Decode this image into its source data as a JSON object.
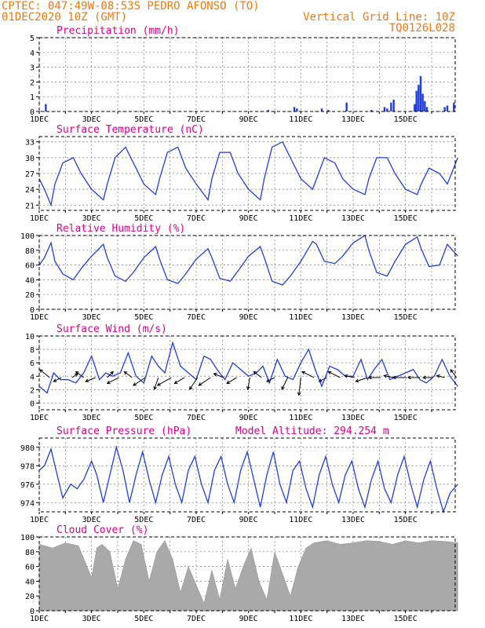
{
  "header": {
    "line1": "CPTEC:   047:49W-08:53S   PEDRO AFONSO (TO)",
    "line2": "01DEC2020 10Z (GMT)",
    "grid_note": "Vertical Grid Line: 10Z",
    "code": "TQ0126L028"
  },
  "colors": {
    "header": "#e87a14",
    "title": "#d8008c",
    "series": "#1f3fdc",
    "cloud": "#a9a9a9",
    "axis": "#000000"
  },
  "x_ticks": [
    "1DEC",
    "3DEC",
    "5DEC",
    "7DEC",
    "9DEC",
    "11DEC",
    "13DEC",
    "15DEC"
  ],
  "x_range_days": [
    0,
    15
  ],
  "chart_data": [
    {
      "type": "bar",
      "title": "Precipitation (mm/h)",
      "ylim": [
        0,
        5
      ],
      "yticks": [
        "0",
        "1",
        "2",
        "3",
        "4",
        "5"
      ],
      "x": [
        0.25,
        8.75,
        9.75,
        9.85,
        10.8,
        11.05,
        11.75,
        12.7,
        13.2,
        13.3,
        13.45,
        13.55,
        14.35,
        14.42,
        14.5,
        14.58,
        14.66,
        14.74,
        14.82,
        15.5,
        15.6,
        15.85
      ],
      "values": [
        0.5,
        0.1,
        0.3,
        0.2,
        0.2,
        0.1,
        0.6,
        0.1,
        0.3,
        0.2,
        0.6,
        0.8,
        0.5,
        1.4,
        1.8,
        2.4,
        1.2,
        0.7,
        0.3,
        0.3,
        0.4,
        0.6
      ]
    },
    {
      "type": "line",
      "title": "Surface Temperature (nC)",
      "ylim": [
        20,
        34
      ],
      "yticks": [
        "21",
        "24",
        "27",
        "30",
        "33"
      ],
      "x": [
        0.0,
        0.2,
        0.45,
        0.6,
        0.9,
        1.3,
        1.6,
        2.0,
        2.45,
        2.6,
        2.9,
        3.3,
        3.6,
        4.0,
        4.45,
        4.6,
        4.9,
        5.3,
        5.6,
        6.0,
        6.45,
        6.6,
        6.9,
        7.3,
        7.6,
        8.0,
        8.45,
        8.6,
        8.9,
        9.3,
        9.6,
        10.0,
        10.45,
        10.6,
        10.9,
        11.3,
        11.6,
        12.0,
        12.45,
        12.6,
        12.9,
        13.3,
        13.6,
        14.0,
        14.45,
        14.6,
        14.9,
        15.3,
        15.6,
        16.0
      ],
      "values": [
        26,
        24,
        21,
        25,
        29,
        30,
        27,
        24,
        22,
        25,
        30,
        32,
        29,
        25,
        23,
        26,
        31,
        32,
        28,
        25,
        22,
        26,
        31,
        31,
        27,
        24,
        22,
        26,
        32,
        33,
        30,
        26,
        24,
        26,
        30,
        29,
        26,
        24,
        23,
        26,
        30,
        30,
        27,
        24,
        23,
        25,
        28,
        27,
        25,
        30
      ]
    },
    {
      "type": "line",
      "title": "Relative Humidity (%)",
      "ylim": [
        0,
        100
      ],
      "yticks": [
        "0",
        "20",
        "40",
        "60",
        "80",
        "100"
      ],
      "x": [
        0.0,
        0.2,
        0.45,
        0.6,
        0.9,
        1.3,
        1.6,
        2.0,
        2.45,
        2.6,
        2.9,
        3.3,
        3.6,
        4.0,
        4.45,
        4.6,
        4.9,
        5.3,
        5.6,
        6.0,
        6.45,
        6.6,
        6.9,
        7.3,
        7.6,
        8.0,
        8.45,
        8.6,
        8.9,
        9.3,
        9.6,
        10.0,
        10.45,
        10.6,
        10.9,
        11.3,
        11.6,
        12.0,
        12.45,
        12.6,
        12.9,
        13.3,
        13.6,
        14.0,
        14.45,
        14.6,
        14.9,
        15.3,
        15.6,
        16.0
      ],
      "values": [
        60,
        70,
        90,
        65,
        48,
        40,
        55,
        72,
        88,
        70,
        45,
        38,
        50,
        70,
        85,
        68,
        40,
        35,
        48,
        68,
        82,
        70,
        42,
        38,
        52,
        72,
        85,
        70,
        38,
        33,
        45,
        65,
        92,
        88,
        65,
        62,
        72,
        90,
        100,
        80,
        50,
        45,
        65,
        88,
        98,
        82,
        58,
        60,
        88,
        72
      ]
    },
    {
      "type": "line",
      "title": "Surface Wind (m/s)",
      "ylim": [
        -1,
        10
      ],
      "yticks": [
        "0",
        "2",
        "4",
        "6",
        "8",
        "10"
      ],
      "x": [
        0.0,
        0.3,
        0.55,
        0.8,
        1.1,
        1.4,
        1.7,
        2.0,
        2.3,
        2.55,
        2.8,
        3.1,
        3.4,
        3.7,
        4.0,
        4.3,
        4.55,
        4.8,
        5.1,
        5.4,
        5.7,
        6.0,
        6.3,
        6.55,
        6.8,
        7.1,
        7.4,
        7.7,
        8.0,
        8.3,
        8.55,
        8.8,
        9.1,
        9.4,
        9.7,
        10.0,
        10.3,
        10.55,
        10.8,
        11.1,
        11.4,
        11.7,
        12.0,
        12.3,
        12.55,
        12.8,
        13.1,
        13.4,
        13.7,
        14.0,
        14.3,
        14.55,
        14.8,
        15.1,
        15.4,
        15.7,
        16.0
      ],
      "values": [
        2.5,
        1.5,
        4.5,
        3.5,
        3.5,
        3.0,
        4.5,
        7.0,
        3.5,
        4.5,
        4.0,
        4.5,
        7.5,
        4.0,
        3.0,
        7.0,
        5.5,
        4.5,
        9.0,
        5.5,
        4.5,
        3.5,
        7.0,
        6.5,
        5.0,
        3.5,
        6.0,
        5.0,
        4.0,
        4.5,
        5.5,
        3.0,
        6.5,
        4.0,
        3.5,
        6.0,
        8.0,
        5.0,
        2.5,
        5.5,
        5.0,
        4.0,
        4.0,
        6.5,
        3.5,
        5.0,
        6.5,
        3.5,
        4.0,
        4.5,
        5.0,
        3.5,
        3.0,
        4.0,
        6.5,
        4.0,
        2.5
      ],
      "arrows": [
        {
          "day": 0.4,
          "u": -2.5,
          "v": 2.0
        },
        {
          "day": 0.85,
          "u": -2.0,
          "v": -1.0
        },
        {
          "day": 1.25,
          "u": 1.5,
          "v": 1.0
        },
        {
          "day": 1.7,
          "u": -2.0,
          "v": 1.5
        },
        {
          "day": 2.15,
          "u": -2.5,
          "v": -1.0
        },
        {
          "day": 2.6,
          "u": 1.5,
          "v": 1.5
        },
        {
          "day": 3.05,
          "u": -3.0,
          "v": -1.5
        },
        {
          "day": 3.55,
          "u": -2.0,
          "v": 1.5
        },
        {
          "day": 4.05,
          "u": -3.0,
          "v": -2.0
        },
        {
          "day": 4.55,
          "u": -1.0,
          "v": -3.0
        },
        {
          "day": 5.05,
          "u": -3.5,
          "v": -2.0
        },
        {
          "day": 5.55,
          "u": -2.5,
          "v": -1.5
        },
        {
          "day": 6.05,
          "u": -2.0,
          "v": -3.0
        },
        {
          "day": 6.55,
          "u": -3.0,
          "v": -2.0
        },
        {
          "day": 7.05,
          "u": -2.5,
          "v": 1.0
        },
        {
          "day": 7.55,
          "u": -2.5,
          "v": -1.5
        },
        {
          "day": 8.05,
          "u": -0.5,
          "v": -3.0
        },
        {
          "day": 8.5,
          "u": -2.0,
          "v": 1.5
        },
        {
          "day": 9.0,
          "u": -2.0,
          "v": -1.0
        },
        {
          "day": 9.5,
          "u": -1.5,
          "v": -3.0
        },
        {
          "day": 10.0,
          "u": -0.5,
          "v": -4.5
        },
        {
          "day": 10.5,
          "u": -3.0,
          "v": 1.5
        },
        {
          "day": 11.0,
          "u": -2.0,
          "v": -1.0
        },
        {
          "day": 11.5,
          "u": -3.0,
          "v": 1.5
        },
        {
          "day": 12.05,
          "u": -2.5,
          "v": 0.5
        },
        {
          "day": 12.55,
          "u": -3.0,
          "v": -1.0
        },
        {
          "day": 13.05,
          "u": -3.0,
          "v": 0.0
        },
        {
          "day": 13.55,
          "u": -2.5,
          "v": 0.5
        },
        {
          "day": 14.05,
          "u": -3.5,
          "v": 0.0
        },
        {
          "day": 14.55,
          "u": -3.0,
          "v": 0.0
        },
        {
          "day": 15.05,
          "u": -2.5,
          "v": 0.0
        },
        {
          "day": 15.5,
          "u": -2.0,
          "v": 0.5
        },
        {
          "day": 15.95,
          "u": -1.5,
          "v": 2.0
        }
      ]
    },
    {
      "type": "line",
      "title": "Surface Pressure (hPa)",
      "subtitle": "Model Altitude: 294.254 m",
      "ylim": [
        973,
        981
      ],
      "yticks": [
        "974",
        "976",
        "978",
        "980"
      ],
      "x": [
        0.0,
        0.2,
        0.45,
        0.6,
        0.9,
        1.2,
        1.45,
        1.7,
        2.0,
        2.2,
        2.45,
        2.7,
        2.95,
        3.2,
        3.45,
        3.7,
        3.95,
        4.2,
        4.45,
        4.7,
        4.95,
        5.2,
        5.45,
        5.7,
        5.95,
        6.2,
        6.45,
        6.7,
        6.95,
        7.2,
        7.45,
        7.7,
        7.95,
        8.2,
        8.45,
        8.7,
        8.95,
        9.2,
        9.45,
        9.7,
        9.95,
        10.2,
        10.45,
        10.7,
        10.95,
        11.2,
        11.45,
        11.7,
        11.95,
        12.2,
        12.45,
        12.7,
        12.95,
        13.2,
        13.45,
        13.7,
        13.95,
        14.2,
        14.45,
        14.7,
        14.95,
        15.2,
        15.45,
        15.7,
        16.0
      ],
      "values": [
        977.5,
        978.0,
        979.8,
        978.0,
        974.5,
        976.0,
        975.5,
        976.5,
        978.5,
        977.0,
        974.0,
        977.0,
        980.0,
        977.5,
        974.0,
        977.0,
        979.5,
        976.5,
        974.0,
        977.0,
        979.0,
        976.0,
        974.0,
        977.5,
        979.0,
        976.0,
        974.0,
        977.5,
        979.0,
        976.0,
        974.0,
        977.5,
        979.5,
        976.5,
        973.5,
        977.0,
        979.5,
        976.0,
        974.0,
        977.5,
        978.5,
        975.5,
        973.5,
        977.0,
        979.0,
        976.0,
        974.0,
        977.0,
        978.5,
        975.5,
        973.5,
        976.5,
        978.5,
        975.5,
        974.0,
        977.0,
        979.0,
        976.0,
        973.5,
        976.5,
        978.5,
        975.5,
        973.0,
        975.0,
        976.0
      ]
    },
    {
      "type": "area",
      "title": "Cloud Cover (%)",
      "ylim": [
        0,
        100
      ],
      "yticks": [
        "0",
        "20",
        "40",
        "60",
        "80",
        "100"
      ],
      "x": [
        0.0,
        0.5,
        1.0,
        1.5,
        2.0,
        2.2,
        2.4,
        2.7,
        3.0,
        3.3,
        3.6,
        3.9,
        4.2,
        4.5,
        4.8,
        5.1,
        5.4,
        5.7,
        6.0,
        6.3,
        6.6,
        6.9,
        7.2,
        7.5,
        7.8,
        8.1,
        8.4,
        8.7,
        9.0,
        9.3,
        9.6,
        9.9,
        10.2,
        10.5,
        11.0,
        11.5,
        12.0,
        12.5,
        13.0,
        13.5,
        14.0,
        14.5,
        15.0,
        15.5,
        16.0
      ],
      "values": [
        90,
        85,
        92,
        88,
        45,
        85,
        90,
        80,
        30,
        70,
        95,
        90,
        40,
        80,
        95,
        70,
        25,
        60,
        35,
        10,
        55,
        15,
        70,
        30,
        60,
        85,
        40,
        15,
        80,
        50,
        20,
        60,
        85,
        92,
        95,
        90,
        92,
        95,
        94,
        90,
        95,
        92,
        95,
        94,
        92
      ]
    }
  ]
}
